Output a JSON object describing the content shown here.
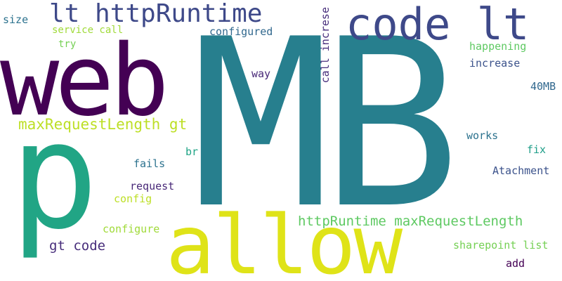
{
  "word_cloud": {
    "words": [
      {
        "id": "mb",
        "text": "MB",
        "color": "#277f8e"
      },
      {
        "id": "web",
        "text": "web",
        "color": "#440154"
      },
      {
        "id": "p",
        "text": "p",
        "color": "#21a585"
      },
      {
        "id": "allow",
        "text": "allow",
        "color": "#dfe318"
      },
      {
        "id": "code_lt",
        "text": "code lt",
        "color": "#3e4989"
      },
      {
        "id": "lt_httpruntime",
        "text": "lt httpRuntime",
        "color": "#3e4989"
      },
      {
        "id": "maxrequestlength_gt",
        "text": "maxRequestLength gt",
        "color": "#bddf26"
      },
      {
        "id": "httpruntime_maxrequestlength",
        "text": "httpRuntime maxRequestLength",
        "color": "#5ec962"
      },
      {
        "id": "gt_code",
        "text": "gt code",
        "color": "#472d7b"
      },
      {
        "id": "size",
        "text": "size",
        "color": "#2c728e"
      },
      {
        "id": "service_call",
        "text": "service call",
        "color": "#a0da39"
      },
      {
        "id": "try",
        "text": "try",
        "color": "#75d054"
      },
      {
        "id": "configured",
        "text": "configured",
        "color": "#31688e"
      },
      {
        "id": "call_increse",
        "text": "call increse",
        "color": "#472d7b"
      },
      {
        "id": "happening",
        "text": "happening",
        "color": "#5ec962"
      },
      {
        "id": "increase",
        "text": "increase",
        "color": "#3b528b"
      },
      {
        "id": "forty_mb",
        "text": "40MB",
        "color": "#31688e"
      },
      {
        "id": "way",
        "text": "way",
        "color": "#482878"
      },
      {
        "id": "works",
        "text": "works",
        "color": "#2c728e"
      },
      {
        "id": "fix",
        "text": "fix",
        "color": "#1f9e89"
      },
      {
        "id": "br",
        "text": "br",
        "color": "#20a486"
      },
      {
        "id": "fails",
        "text": "fails",
        "color": "#2c728e"
      },
      {
        "id": "atachment",
        "text": "Atachment",
        "color": "#3b528b"
      },
      {
        "id": "request",
        "text": "request",
        "color": "#482878"
      },
      {
        "id": "config",
        "text": "config",
        "color": "#bddf26"
      },
      {
        "id": "configure",
        "text": "configure",
        "color": "#a0da39"
      },
      {
        "id": "sharepoint_list",
        "text": "sharepoint list",
        "color": "#75d054"
      },
      {
        "id": "add",
        "text": "add",
        "color": "#440154"
      }
    ]
  }
}
